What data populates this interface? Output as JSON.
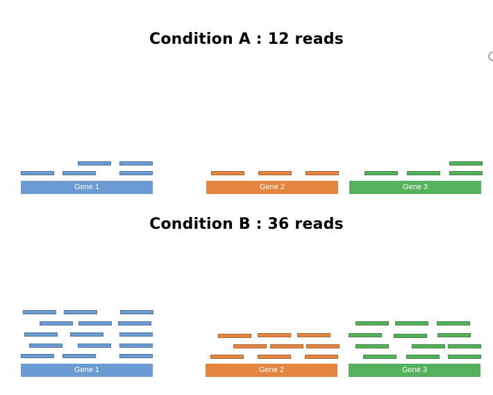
{
  "condition_a": {
    "title": "Condition A : 12 reads",
    "genes": [
      {
        "label": "Gene 1",
        "color": "#6b9bd2"
      },
      {
        "label": "Gene 2",
        "color": "#e48640"
      },
      {
        "label": "Gene 3",
        "color": "#56b15c"
      }
    ]
  },
  "condition_b": {
    "title": "Condition B : 36 reads",
    "genes": [
      {
        "label": "Gene 1",
        "color": "#6b9bd2"
      },
      {
        "label": "Gene 2",
        "color": "#e48640"
      },
      {
        "label": "Gene 3",
        "color": "#56b15c"
      }
    ]
  }
}
